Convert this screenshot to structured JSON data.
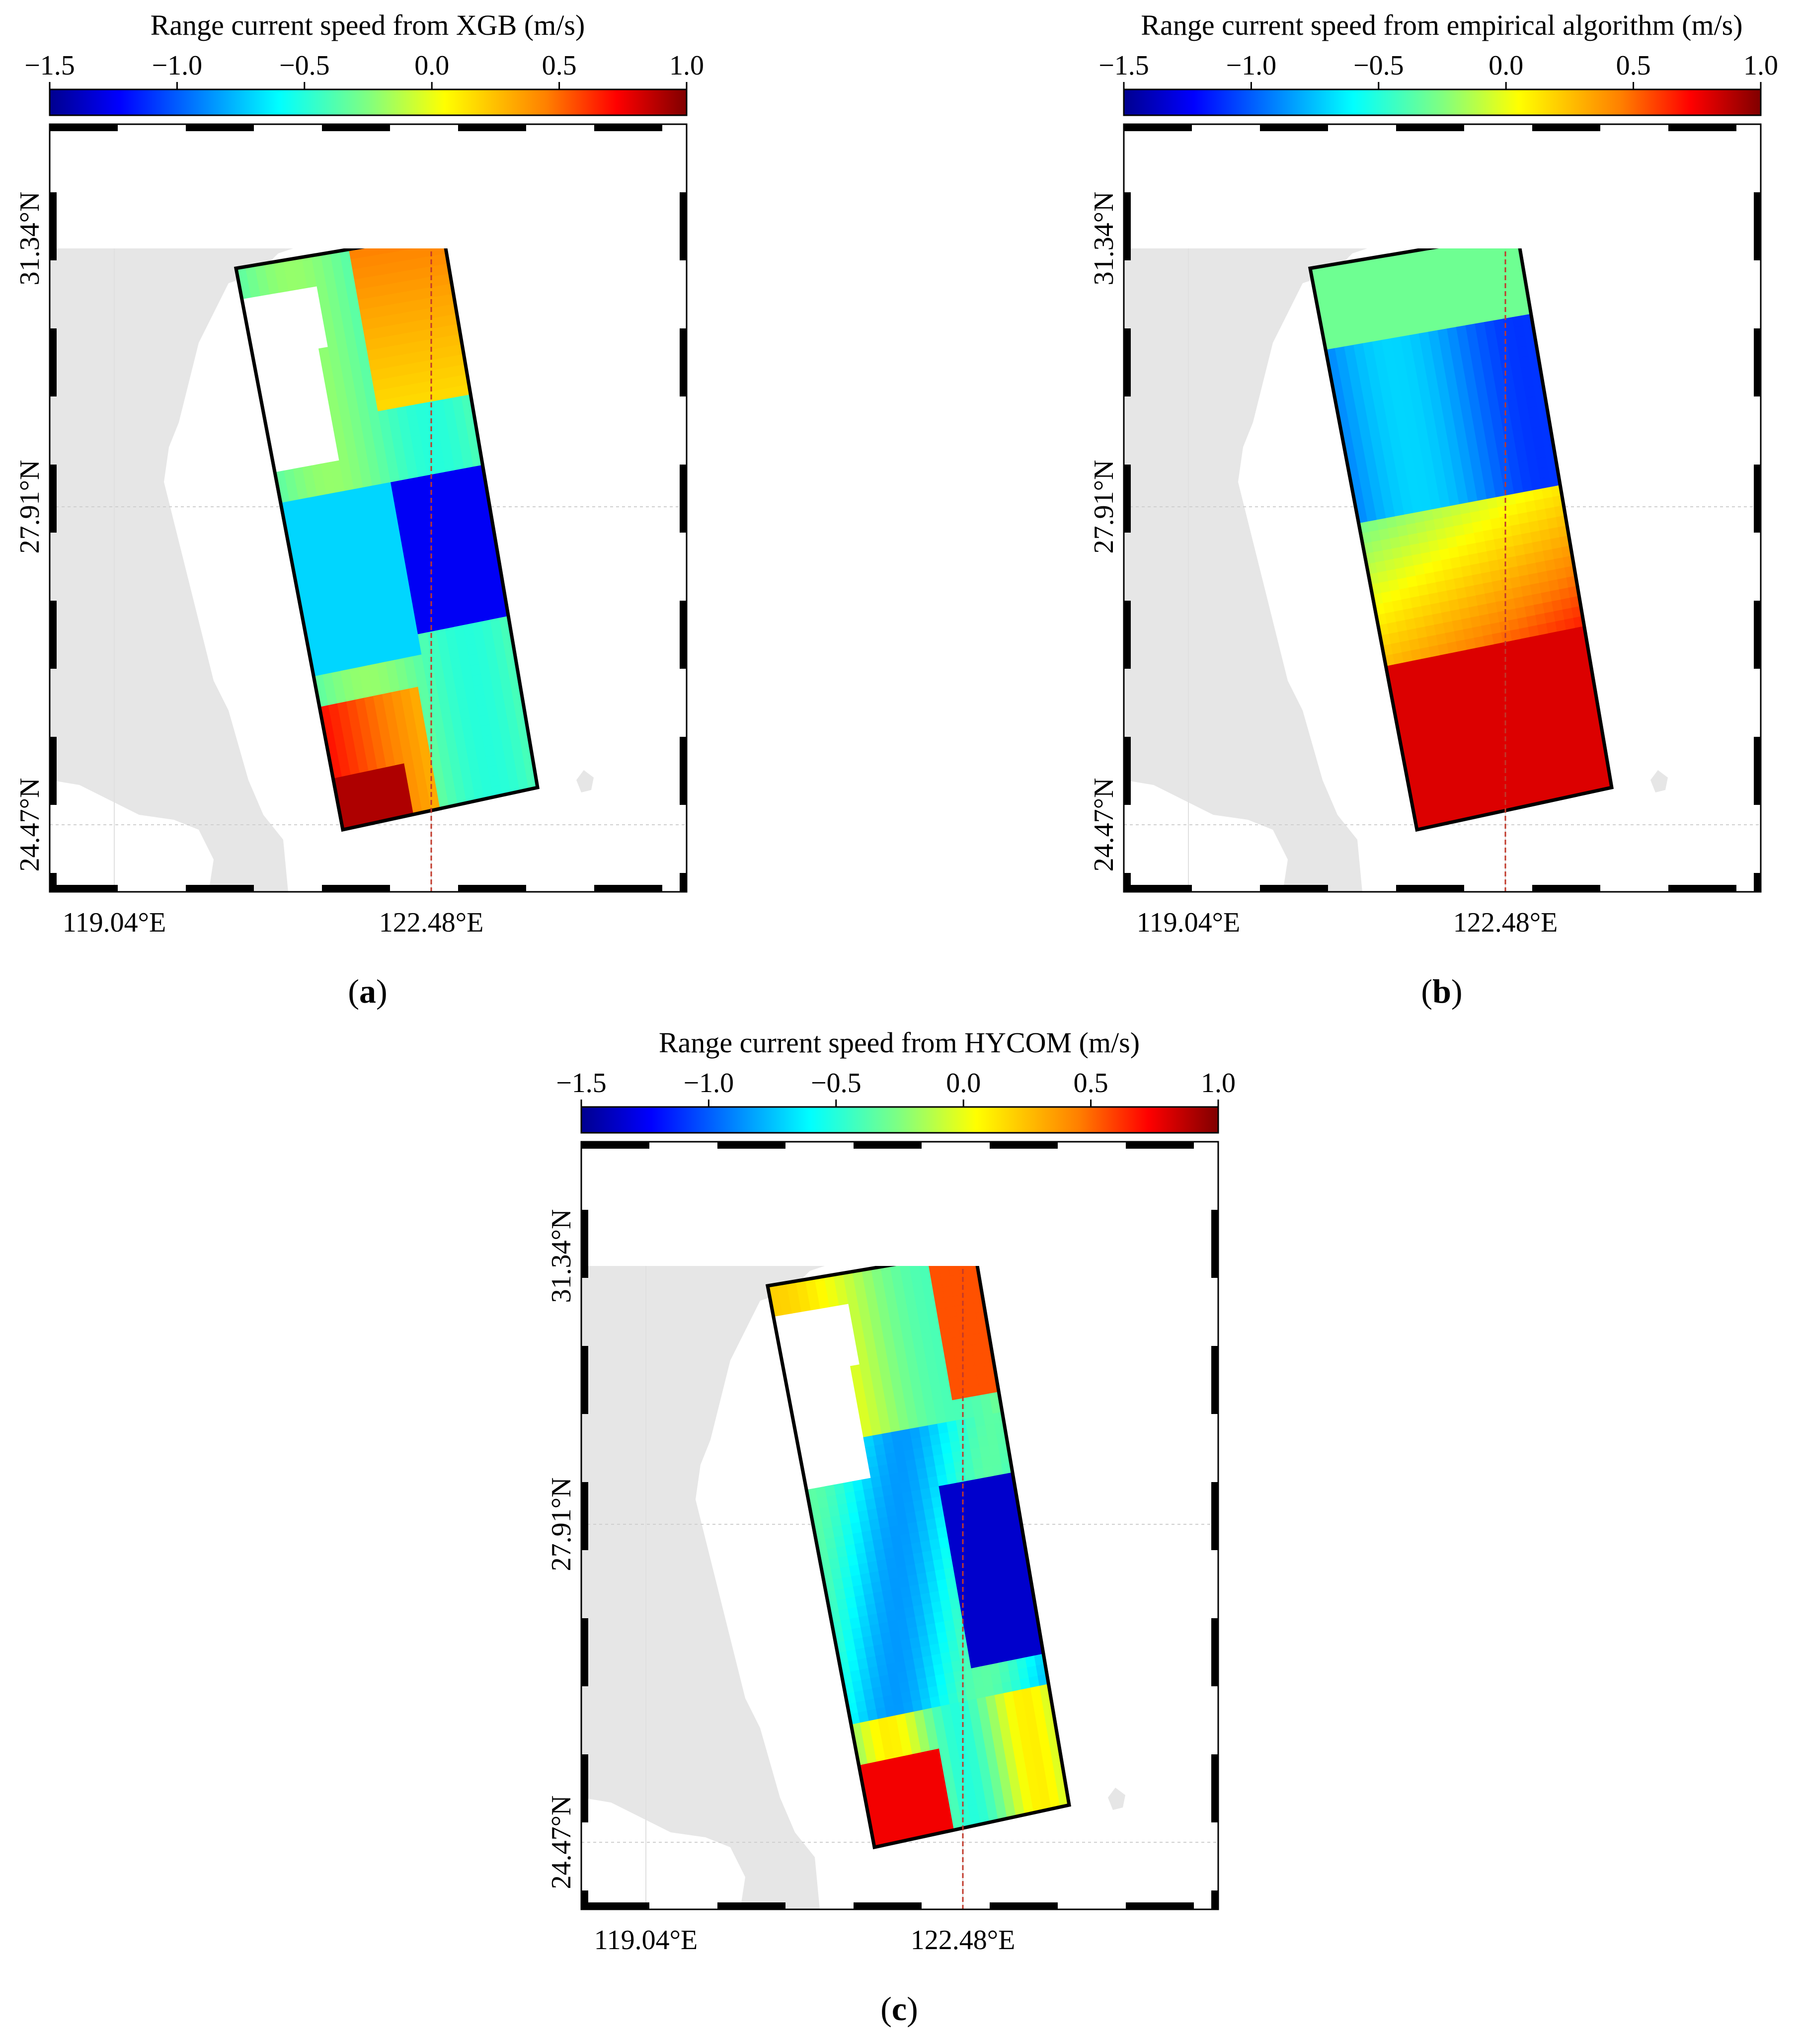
{
  "panels": [
    {
      "id": "a",
      "colorbar": {
        "title": "Range current speed from XGB (m/s)",
        "ticks": [
          "−1.5",
          "−1.0",
          "−0.5",
          "0.0",
          "0.5",
          "1.0"
        ],
        "tick_values": [
          -1.5,
          -1.0,
          -0.5,
          0.0,
          0.5,
          1.0
        ]
      },
      "lat_labels": [
        "31.34°N",
        "27.91°N",
        "24.47°N"
      ],
      "lon_labels": [
        "119.04°E",
        "122.48°E"
      ],
      "caption_letter": "a",
      "field_pattern": "xgb"
    },
    {
      "id": "b",
      "colorbar": {
        "title": "Range current speed from empirical algorithm (m/s)",
        "ticks": [
          "−1.5",
          "−1.0",
          "−0.5",
          "0.0",
          "0.5",
          "1.0"
        ],
        "tick_values": [
          -1.5,
          -1.0,
          -0.5,
          0.0,
          0.5,
          1.0
        ]
      },
      "lat_labels": [
        "31.34°N",
        "27.91°N",
        "24.47°N"
      ],
      "lon_labels": [
        "119.04°E",
        "122.48°E"
      ],
      "caption_letter": "b",
      "field_pattern": "empirical"
    },
    {
      "id": "c",
      "colorbar": {
        "title": "Range current speed from HYCOM (m/s)",
        "ticks": [
          "−1.5",
          "−1.0",
          "−0.5",
          "0.0",
          "0.5",
          "1.0"
        ],
        "tick_values": [
          -1.5,
          -1.0,
          -0.5,
          0.0,
          0.5,
          1.0
        ]
      },
      "lat_labels": [
        "31.34°N",
        "27.91°N",
        "24.47°N"
      ],
      "lon_labels": [
        "119.04°E",
        "122.48°E"
      ],
      "caption_letter": "c",
      "field_pattern": "hycom"
    }
  ],
  "colors": {
    "land": "#e6e6e6",
    "frame": "#000000",
    "transect_line": "#c0392b",
    "colormap": [
      "#00008f",
      "#0000ff",
      "#0080ff",
      "#00ffff",
      "#80ff80",
      "#ffff00",
      "#ff8000",
      "#ff0000",
      "#800000"
    ]
  }
}
